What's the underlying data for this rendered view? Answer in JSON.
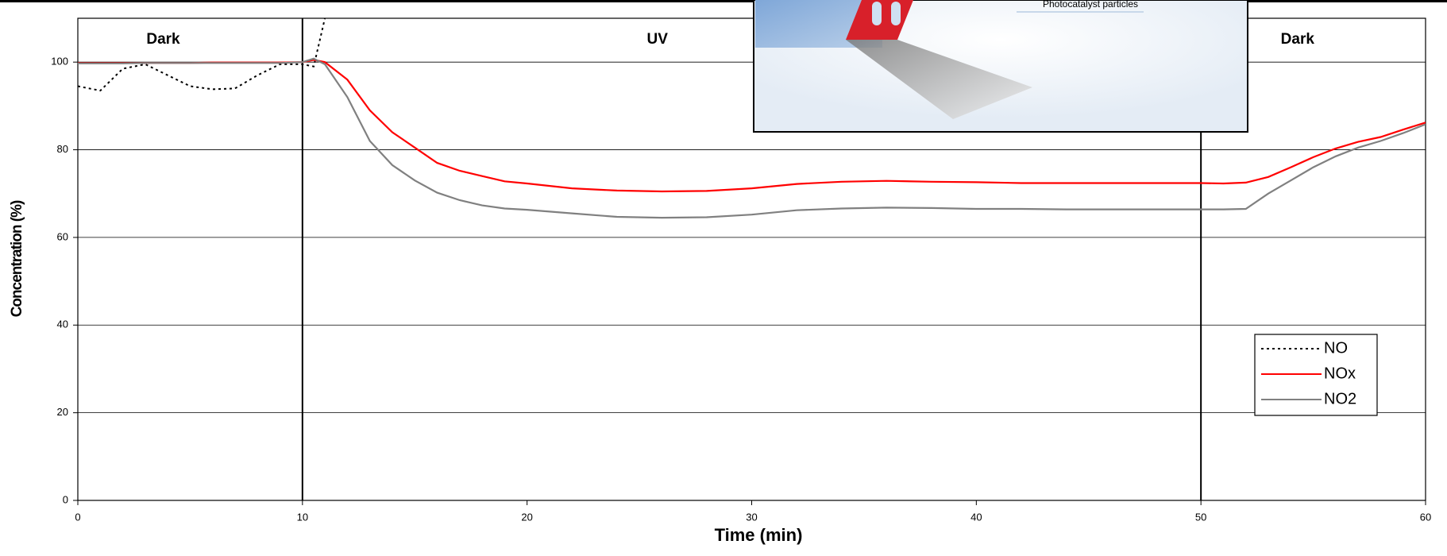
{
  "chart_data": {
    "type": "line",
    "x_label": "Time (min)",
    "y_label": "Concentration (%)",
    "xlim": [
      0,
      60
    ],
    "ylim": [
      0,
      110
    ],
    "xticks": [
      0,
      10,
      20,
      30,
      40,
      50,
      60
    ],
    "yticks": [
      0,
      20,
      40,
      60,
      80,
      100
    ],
    "grid": true,
    "legend": "right",
    "phase_lines": [
      10,
      50
    ],
    "phases": [
      {
        "label": "Dark",
        "x": 3.8
      },
      {
        "label": "UV",
        "x": 25.8
      },
      {
        "label": "Dark",
        "x": 54.3
      }
    ],
    "inset_caption": "Photocatalyst particles",
    "x": [
      0,
      1,
      2,
      3,
      4,
      5,
      6,
      7,
      8,
      9,
      10,
      10.5,
      11,
      12,
      13,
      14,
      15,
      16,
      17,
      18,
      19,
      20,
      22,
      24,
      26,
      28,
      30,
      32,
      34,
      36,
      38,
      40,
      42,
      44,
      46,
      48,
      50,
      51,
      52,
      53,
      54,
      55,
      56,
      57,
      58,
      59,
      60
    ],
    "series": [
      {
        "name": "NO",
        "color": "#000000",
        "dash": "dotted",
        "values": [
          94.5,
          93.5,
          98.5,
          99.5,
          97,
          94.5,
          93.8,
          94,
          97,
          99.5,
          99.5,
          99,
          110,
          null,
          null,
          null,
          null,
          null,
          null,
          null,
          null,
          null,
          null,
          null,
          null,
          null,
          null,
          null,
          null,
          null,
          null,
          null,
          null,
          null,
          null,
          null,
          null,
          null,
          null,
          null,
          null,
          null,
          null,
          null,
          null,
          null,
          null
        ]
      },
      {
        "name": "NOx",
        "color": "#ff0000",
        "dash": "solid",
        "values": [
          99.8,
          99.8,
          99.8,
          99.8,
          99.8,
          99.8,
          99.9,
          99.9,
          99.9,
          99.9,
          100,
          100.5,
          100,
          96,
          89,
          84,
          80.5,
          77,
          75.2,
          74,
          72.8,
          72.3,
          71.2,
          70.7,
          70.5,
          70.6,
          71.2,
          72.2,
          72.7,
          72.9,
          72.7,
          72.6,
          72.4,
          72.4,
          72.4,
          72.4,
          72.4,
          72.3,
          72.5,
          73.8,
          76,
          78.3,
          80.3,
          81.8,
          82.9,
          84.6,
          86.2
        ]
      },
      {
        "name": "NO2",
        "color": "#808080",
        "dash": "solid",
        "values": [
          99.7,
          99.7,
          99.7,
          99.8,
          99.8,
          99.8,
          99.8,
          99.8,
          99.8,
          99.8,
          100,
          100.8,
          99.5,
          92,
          82,
          76.5,
          73,
          70.2,
          68.5,
          67.3,
          66.6,
          66.3,
          65.5,
          64.7,
          64.5,
          64.6,
          65.2,
          66.2,
          66.6,
          66.8,
          66.7,
          66.5,
          66.5,
          66.4,
          66.4,
          66.4,
          66.4,
          66.4,
          66.5,
          70,
          73,
          76,
          78.5,
          80.5,
          82,
          83.8,
          85.8
        ]
      }
    ]
  }
}
